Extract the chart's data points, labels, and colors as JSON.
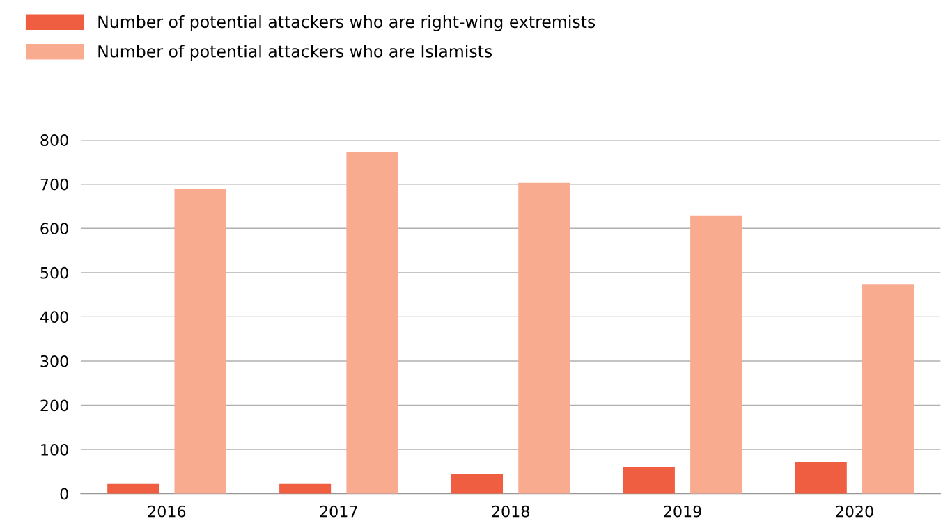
{
  "chart_data": {
    "type": "bar",
    "categories": [
      "2016",
      "2017",
      "2018",
      "2019",
      "2020"
    ],
    "series": [
      {
        "name": "Number of potential attackers who are right-wing extremists",
        "color": "#f05e42",
        "values": [
          22,
          22,
          44,
          60,
          72
        ]
      },
      {
        "name": "Number of potential attackers who are Islamists",
        "color": "#f9ab90",
        "values": [
          689,
          772,
          703,
          629,
          474
        ]
      }
    ],
    "ylim": [
      0,
      800
    ],
    "yticks": [
      0,
      100,
      200,
      300,
      400,
      500,
      600,
      700,
      800
    ],
    "grid": "y",
    "legend": "top left"
  }
}
